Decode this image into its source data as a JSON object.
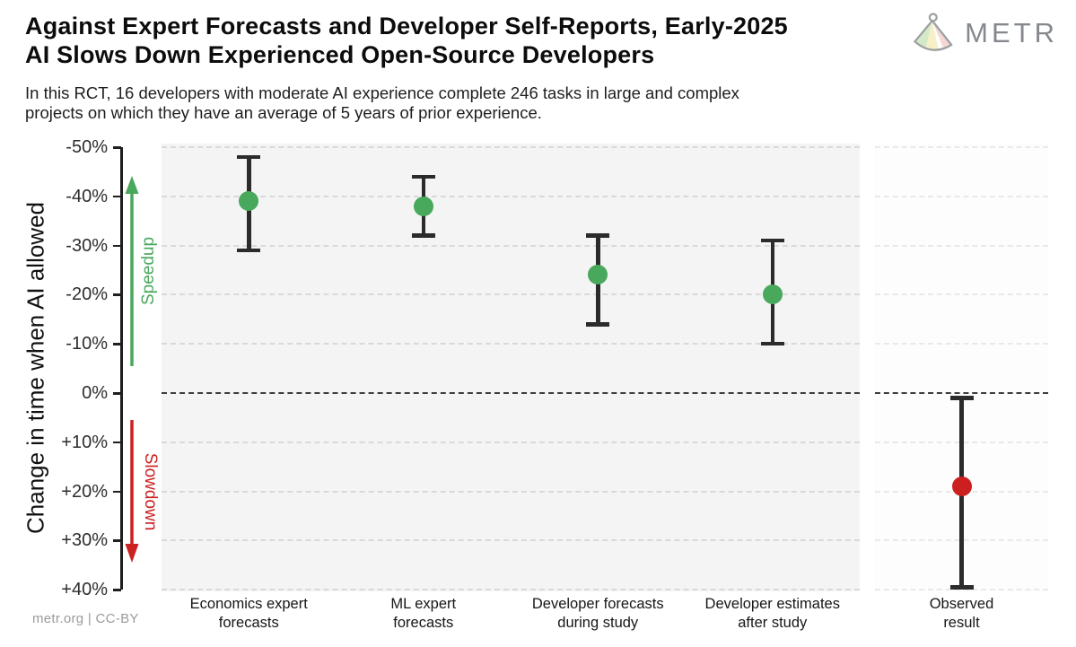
{
  "header": {
    "title_line1": "Against Expert Forecasts and Developer Self-Reports, Early-2025",
    "title_line2": "AI Slows Down Experienced Open-Source Developers",
    "subtitle_line1": "In this RCT, 16 developers with moderate AI experience complete 246 tasks in large and complex",
    "subtitle_line2": "projects on which they have an average of 5 years of prior experience.",
    "logo_text": "METR"
  },
  "footer": {
    "credit": "metr.org  |  CC-BY"
  },
  "chart_data": {
    "type": "scatter",
    "error_bars": true,
    "title": "Against Expert Forecasts and Developer Self-Reports, Early-2025 AI Slows Down Experienced Open-Source Developers",
    "subtitle": "In this RCT, 16 developers with moderate AI experience complete 246 tasks in large and complex projects on which they have an average of 5 years of prior experience.",
    "ylabel": "Change in time when AI allowed",
    "y_axis": {
      "unit": "%",
      "min": -50,
      "max": 40,
      "negative_is_up": true,
      "ticks": [
        {
          "v": -50,
          "label": "-50%"
        },
        {
          "v": -40,
          "label": "-40%"
        },
        {
          "v": -30,
          "label": "-30%"
        },
        {
          "v": -20,
          "label": "-20%"
        },
        {
          "v": -10,
          "label": "-10%"
        },
        {
          "v": 0,
          "label": "0%"
        },
        {
          "v": 10,
          "label": "+10%"
        },
        {
          "v": 20,
          "label": "+20%"
        },
        {
          "v": 30,
          "label": "+30%"
        },
        {
          "v": 40,
          "label": "+40%"
        }
      ]
    },
    "annotations": {
      "speedup": {
        "label": "Speedup",
        "color": "#48a85c",
        "direction": "up",
        "region": "negative values"
      },
      "slowdown": {
        "label": "Slowdown",
        "color": "#cc2121",
        "direction": "down",
        "region": "positive values"
      }
    },
    "points": [
      {
        "category": "Economics expert\nforecasts",
        "value": -39,
        "ci_low": -48,
        "ci_high": -29,
        "color": "#48a85c",
        "panel": "main"
      },
      {
        "category": "ML expert\nforecasts",
        "value": -38,
        "ci_low": -44,
        "ci_high": -32,
        "color": "#48a85c",
        "panel": "main"
      },
      {
        "category": "Developer forecasts\nduring study",
        "value": -24,
        "ci_low": -32,
        "ci_high": -14,
        "color": "#48a85c",
        "panel": "main"
      },
      {
        "category": "Developer estimates\nafter study",
        "value": -20,
        "ci_low": -31,
        "ci_high": -10,
        "color": "#48a85c",
        "panel": "main"
      },
      {
        "category": "Observed\nresult",
        "value": 19,
        "ci_low": 1,
        "ci_high": 39.5,
        "color": "#cc1f1f",
        "panel": "right"
      }
    ],
    "colors": {
      "point_green": "#48a85c",
      "point_red": "#cc1f1f",
      "error_bar": "#2b2b2b",
      "panel_bg": "#f4f4f4",
      "right_panel_bg": "#fdfdfd",
      "gridline": "#d9d9d9",
      "zero_line": "#3e3e3e"
    },
    "layout_hints": {
      "grid": "horizontal dashed lines at every 10%",
      "zero_line": "dark dashed line at 0%",
      "right_panel_separated": true,
      "legend": "none"
    }
  }
}
